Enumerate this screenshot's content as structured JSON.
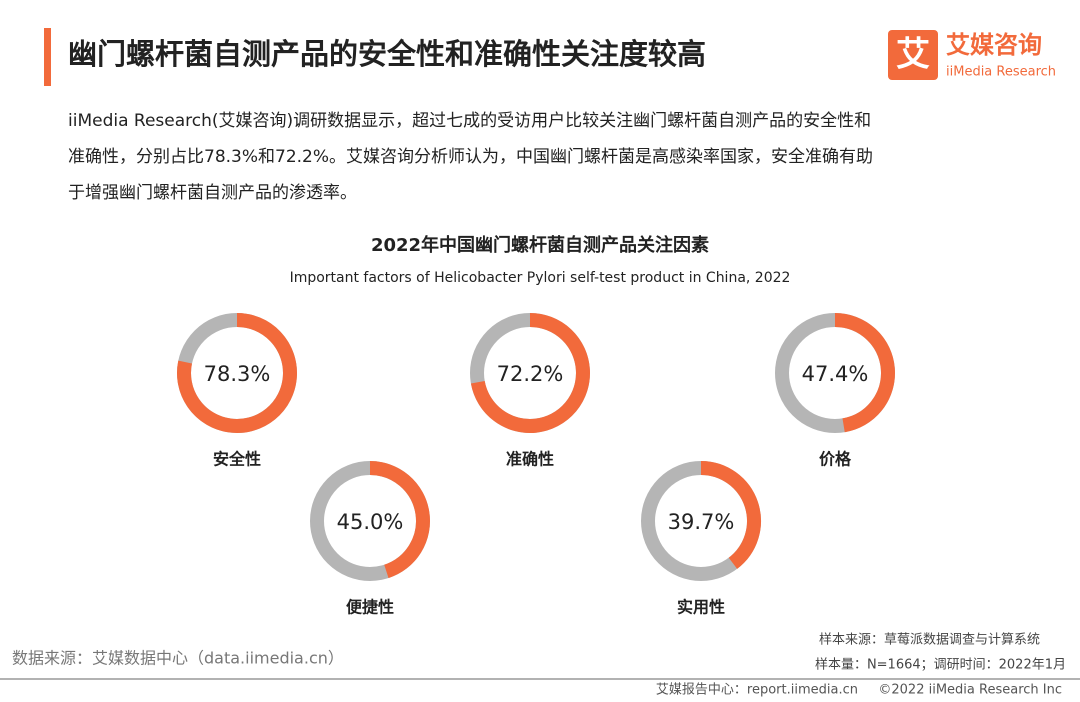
{
  "header": {
    "title": "幽门螺杆菌自测产品的安全性和准确性关注度较高",
    "logo_mark": "艾",
    "logo_name": "艾媒咨询",
    "logo_en": "iiMedia Research"
  },
  "intro": [
    "iiMedia Research(艾媒咨询)调研数据显示，超过七成的受访用户比较关注幽门螺杆菌自测产品的安全性和",
    "准确性，分别占比78.3%和72.2%。艾媒咨询分析师认为，中国幽门螺杆菌是高感染率国家，安全准确有助",
    "于增强幽门螺杆菌自测产品的渗透率。"
  ],
  "chart_data": {
    "type": "donut",
    "title": "2022年中国幽门螺杆菌自测产品关注因素",
    "subtitle": "Important factors of Helicobacter Pylori self-test product in China, 2022",
    "categories": [
      "安全性",
      "准确性",
      "价格",
      "便捷性",
      "实用性"
    ],
    "values": [
      78.3,
      72.2,
      47.4,
      45.0,
      39.7
    ],
    "value_labels": [
      "78.3%",
      "72.2%",
      "47.4%",
      "45.0%",
      "39.7%"
    ],
    "color": "#f26a3b",
    "track_color": "#b5b5b5"
  },
  "footer": {
    "source": "数据来源：艾媒数据中心（data.iimedia.cn）",
    "sample_source": "样本来源：草莓派数据调查与计算系统",
    "sample_size": "样本量：N=1664；调研时间：2022年1月",
    "report": "艾媒报告中心：report.iimedia.cn",
    "copyright": "©2022 iiMedia Research Inc"
  }
}
